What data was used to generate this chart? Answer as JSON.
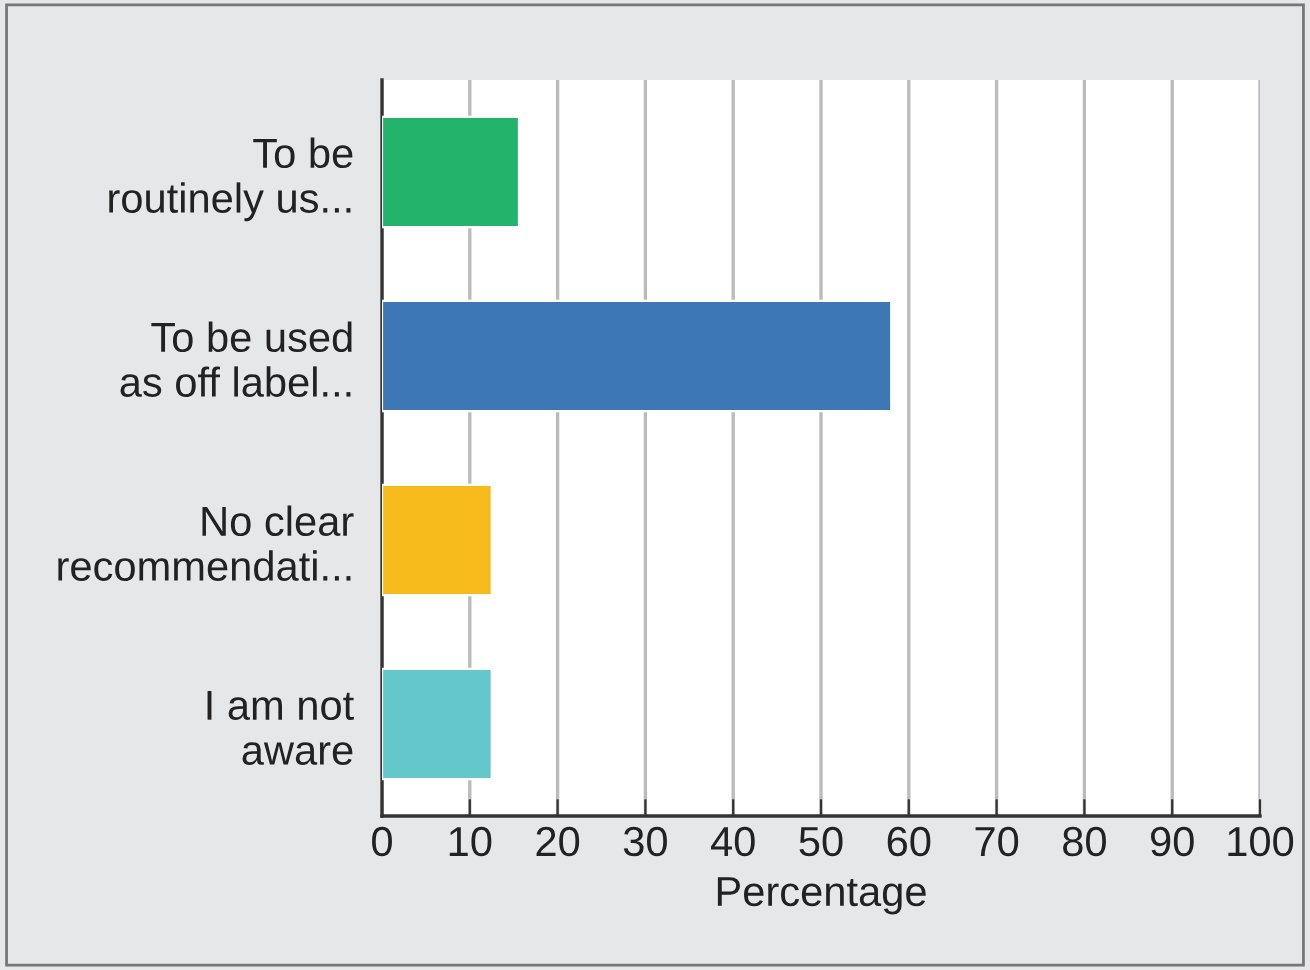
{
  "chart_data": {
    "type": "bar",
    "orientation": "horizontal",
    "categories": [
      "To be\nroutinely us...",
      "To be used\nas off label...",
      "No clear\nrecommendati...",
      "I am not\naware"
    ],
    "values": [
      15.6,
      58,
      12.5,
      12.5
    ],
    "colors": [
      "#23b36a",
      "#3d77b6",
      "#f6bb1a",
      "#63c7cc"
    ],
    "xlabel": "Percentage",
    "xlim": [
      0,
      100
    ],
    "xticks": [
      0,
      10,
      20,
      30,
      40,
      50,
      60,
      70,
      80,
      90,
      100
    ],
    "grid": "x",
    "legend": false
  }
}
